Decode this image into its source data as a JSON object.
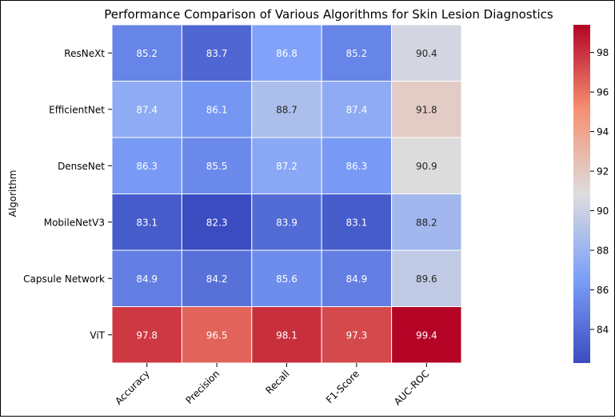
{
  "chart_data": {
    "type": "heatmap",
    "title": "Performance Comparison of Various Algorithms for Skin Lesion Diagnostics",
    "xlabel": "",
    "ylabel": "Algorithm",
    "rows": [
      "ResNeXt",
      "EfficientNet",
      "DenseNet",
      "MobileNetV3",
      "Capsule Network",
      "ViT"
    ],
    "columns": [
      "Accuracy",
      "Precision",
      "Recall",
      "F1-Score",
      "AUC-ROC"
    ],
    "values": [
      [
        85.2,
        83.7,
        86.8,
        85.2,
        90.4
      ],
      [
        87.4,
        86.1,
        88.7,
        87.4,
        91.8
      ],
      [
        86.3,
        85.5,
        87.2,
        86.3,
        90.9
      ],
      [
        83.1,
        82.3,
        83.9,
        83.1,
        88.2
      ],
      [
        84.9,
        84.2,
        85.6,
        84.9,
        89.6
      ],
      [
        97.8,
        96.5,
        98.1,
        97.3,
        99.4
      ]
    ],
    "value_labels": [
      [
        "85.2",
        "83.7",
        "86.8",
        "85.2",
        "90.4"
      ],
      [
        "87.4",
        "86.1",
        "88.7",
        "87.4",
        "91.8"
      ],
      [
        "86.3",
        "85.5",
        "87.2",
        "86.3",
        "90.9"
      ],
      [
        "83.1",
        "82.3",
        "83.9",
        "83.1",
        "88.2"
      ],
      [
        "84.9",
        "84.2",
        "85.6",
        "84.9",
        "89.6"
      ],
      [
        "97.8",
        "96.5",
        "98.1",
        "97.3",
        "99.4"
      ]
    ],
    "colormap": "coolwarm",
    "color_range": [
      82.3,
      99.4
    ],
    "colorbar_ticks": [
      "84",
      "86",
      "88",
      "90",
      "92",
      "94",
      "96",
      "98"
    ],
    "annotations": true,
    "grid": false,
    "legend": "colorbar-right"
  }
}
